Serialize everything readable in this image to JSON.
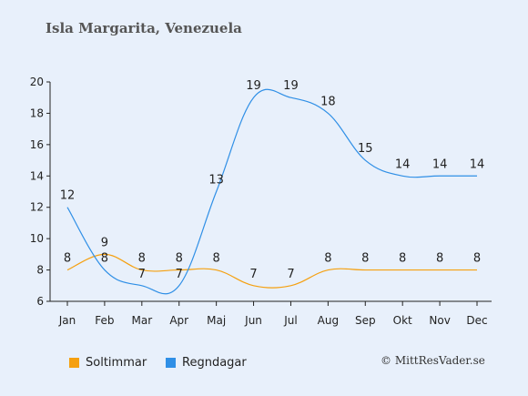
{
  "title": "Isla Margarita, Venezuela",
  "credit": "© MittResVader.se",
  "colors": {
    "sun": "#f5a00f",
    "rain": "#2f8fe6",
    "axis": "#222222",
    "label": "#222222"
  },
  "chart_data": {
    "type": "line",
    "categories": [
      "Jan",
      "Feb",
      "Mar",
      "Apr",
      "Maj",
      "Jun",
      "Jul",
      "Aug",
      "Sep",
      "Okt",
      "Nov",
      "Dec"
    ],
    "series": [
      {
        "name": "Soltimmar",
        "values": [
          8,
          9,
          8,
          8,
          8,
          7,
          7,
          8,
          8,
          8,
          8,
          8
        ],
        "color": "#f5a00f"
      },
      {
        "name": "Regndagar",
        "values": [
          12,
          8,
          7,
          7,
          13,
          19,
          19,
          18,
          15,
          14,
          14,
          14
        ],
        "color": "#2f8fe6"
      }
    ],
    "yticks": [
      6,
      8,
      10,
      12,
      14,
      16,
      18,
      20
    ],
    "ylim": [
      6,
      20
    ],
    "grid": false,
    "legend": "bottom-left"
  }
}
